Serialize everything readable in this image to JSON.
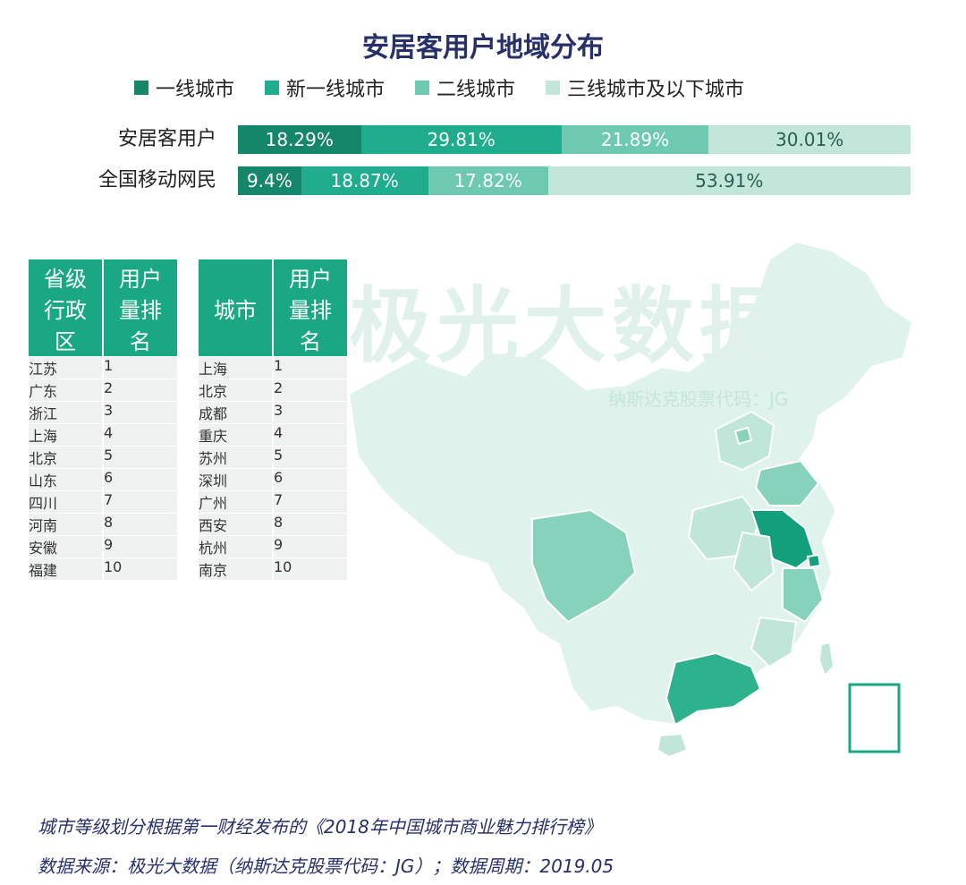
{
  "title": "安居客用户地域分布",
  "legend": [
    {
      "label": "一线城市",
      "color": "#16866a"
    },
    {
      "label": "新一线城市",
      "color": "#1fad8d"
    },
    {
      "label": "二线城市",
      "color": "#6ec9b1"
    },
    {
      "label": "三线城市及以下城市",
      "color": "#c2e6da"
    }
  ],
  "chart_data": {
    "type": "bar",
    "stacked": true,
    "normalized": true,
    "categories": [
      "安居客用户",
      "全国移动网民"
    ],
    "series": [
      {
        "name": "一线城市",
        "values": [
          18.29,
          9.4
        ],
        "labels": [
          "18.29%",
          "9.4%"
        ]
      },
      {
        "name": "新一线城市",
        "values": [
          29.81,
          18.87
        ],
        "labels": [
          "29.81%",
          "18.87%"
        ]
      },
      {
        "name": "二线城市",
        "values": [
          21.89,
          17.82
        ],
        "labels": [
          "21.89%",
          "17.82%"
        ]
      },
      {
        "name": "三线城市及以下城市",
        "values": [
          30.01,
          53.91
        ],
        "labels": [
          "30.01%",
          "53.91%"
        ]
      }
    ]
  },
  "province_table": {
    "headers": [
      "省级行政区",
      "用户量排名"
    ],
    "header_lines": [
      [
        "省级",
        "行政",
        "区"
      ],
      [
        "用户",
        "量排",
        "名"
      ]
    ],
    "rows": [
      [
        "江苏",
        "1"
      ],
      [
        "广东",
        "2"
      ],
      [
        "浙江",
        "3"
      ],
      [
        "上海",
        "4"
      ],
      [
        "北京",
        "5"
      ],
      [
        "山东",
        "6"
      ],
      [
        "四川",
        "7"
      ],
      [
        "河南",
        "8"
      ],
      [
        "安徽",
        "9"
      ],
      [
        "福建",
        "10"
      ]
    ]
  },
  "city_table": {
    "headers": [
      "城市",
      "用户量排名"
    ],
    "header_lines": [
      [
        "城市"
      ],
      [
        "用户",
        "量排",
        "名"
      ]
    ],
    "rows": [
      [
        "上海",
        "1"
      ],
      [
        "北京",
        "2"
      ],
      [
        "成都",
        "3"
      ],
      [
        "重庆",
        "4"
      ],
      [
        "苏州",
        "5"
      ],
      [
        "深圳",
        "6"
      ],
      [
        "广州",
        "7"
      ],
      [
        "西安",
        "8"
      ],
      [
        "杭州",
        "9"
      ],
      [
        "南京",
        "10"
      ]
    ]
  },
  "watermark": {
    "main": "极光大数据",
    "sub": "纳斯达克股票代码：JG"
  },
  "notes": {
    "line1": "城市等级划分根据第一财经发布的《2018年中国城市商业魅力排行榜》",
    "line2": "数据来源：极光大数据（纳斯达克股票代码：JG）；数据周期：2019.05"
  },
  "map_colors": {
    "base": "#dff2ec",
    "light": "#bfe6d9",
    "mid": "#86d2bb",
    "dark": "#2eb18d",
    "darkest": "#12a07c"
  }
}
